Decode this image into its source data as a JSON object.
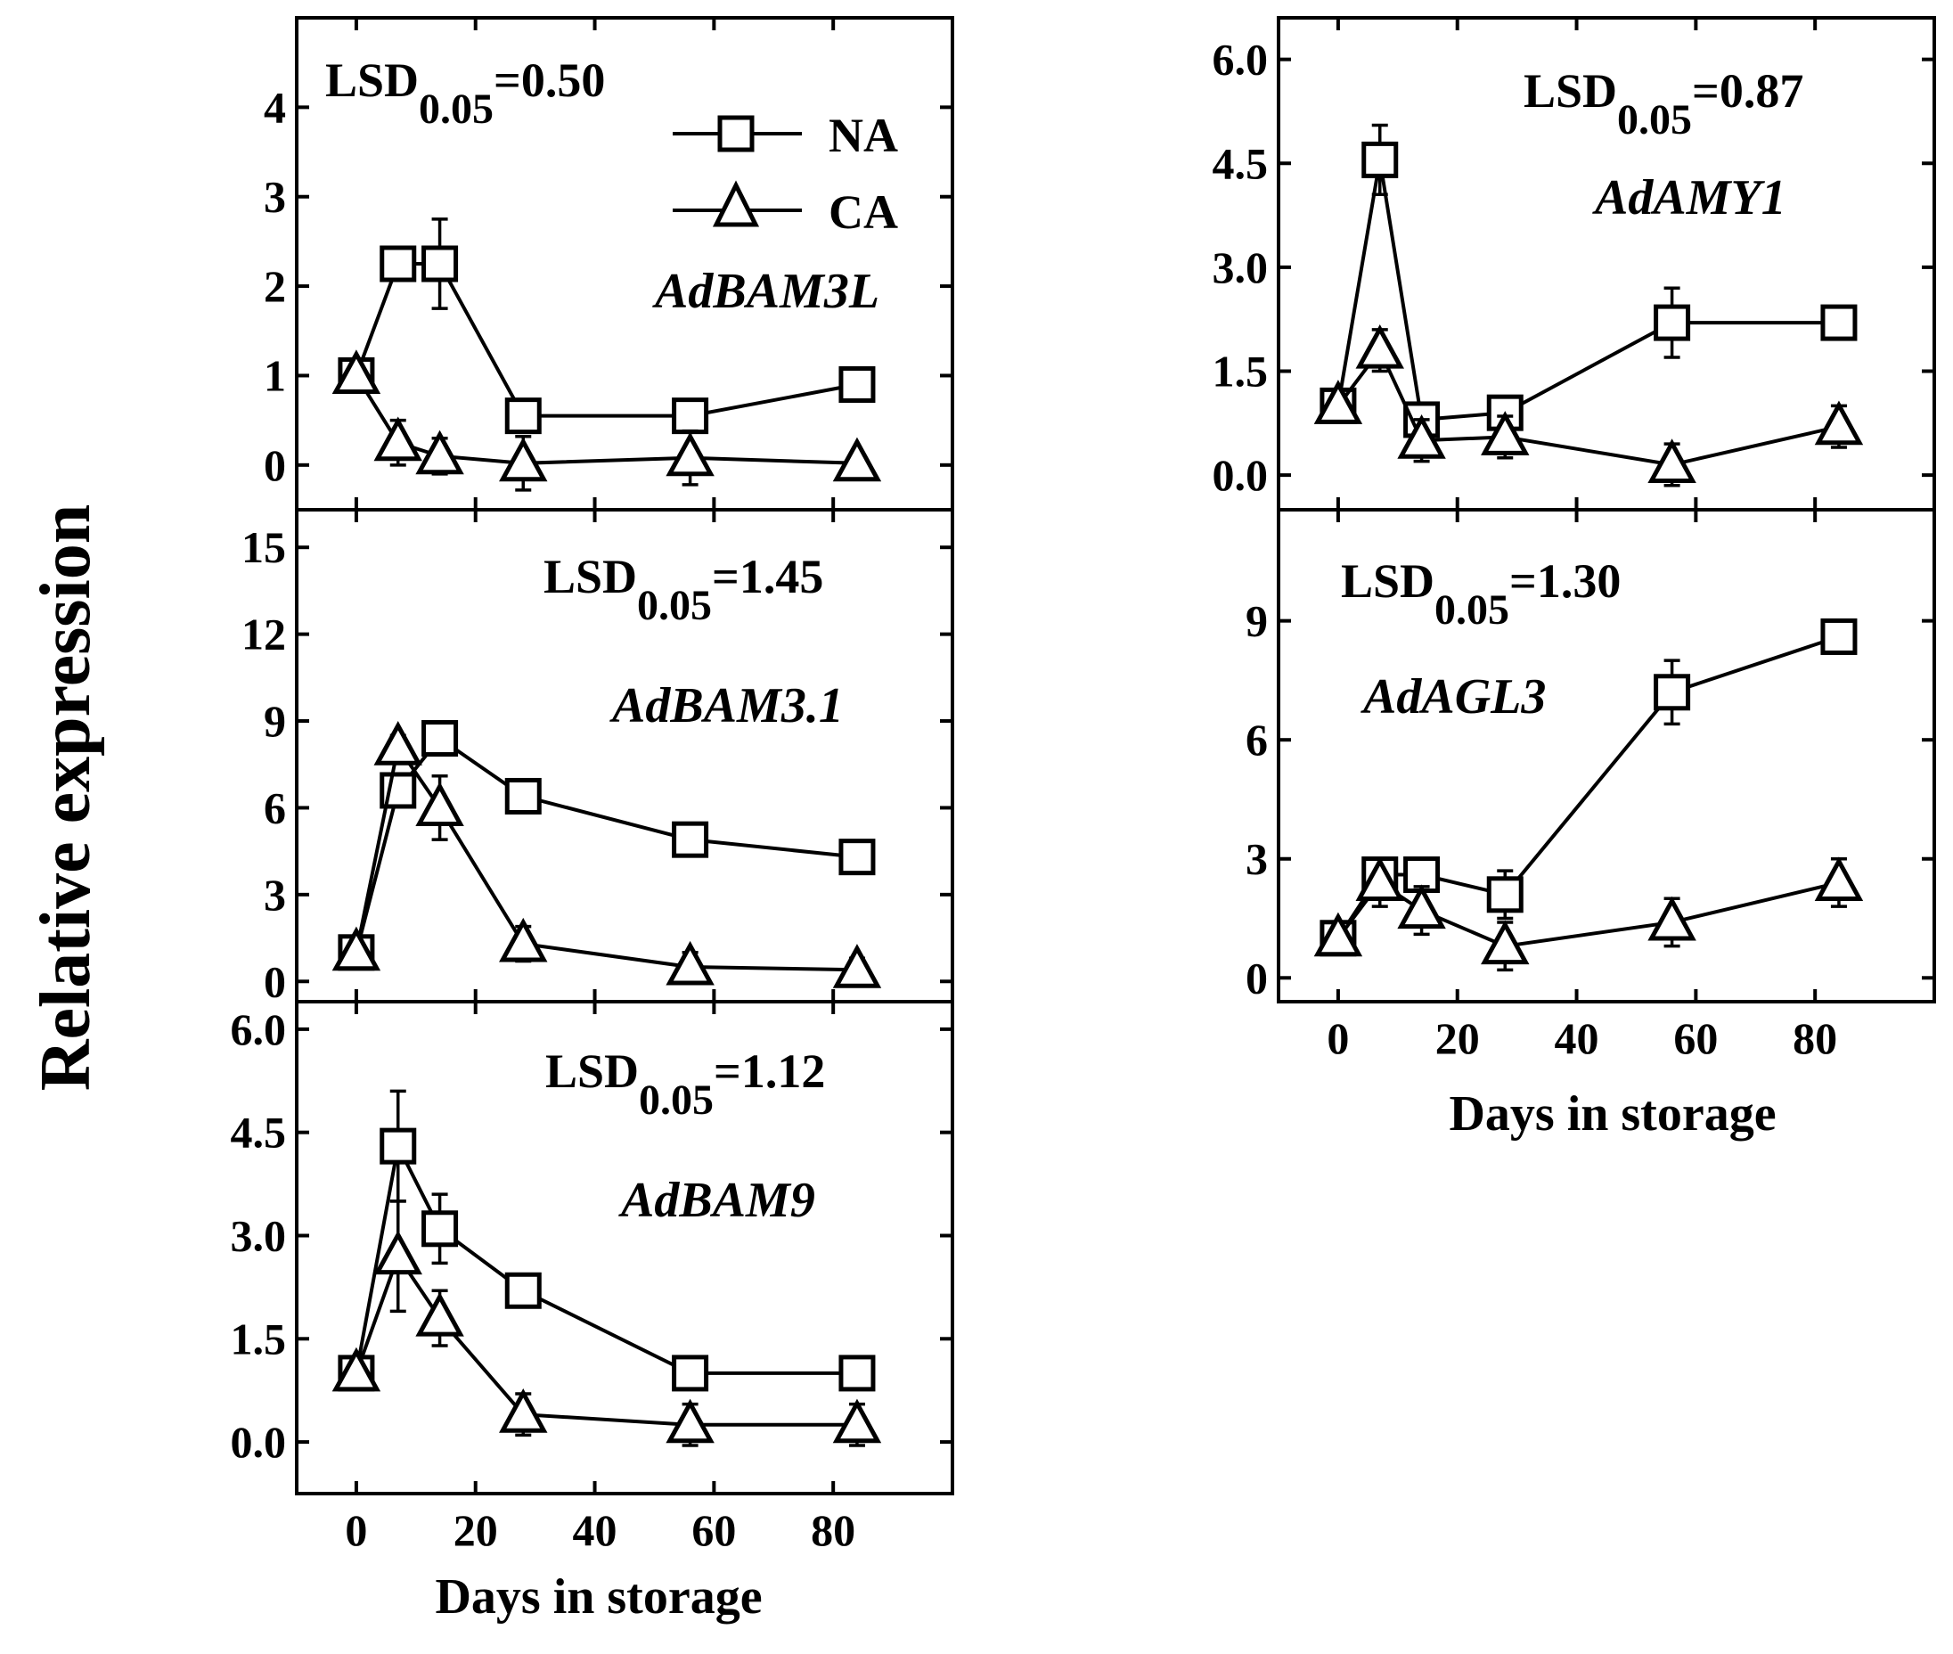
{
  "figure": {
    "ylabel": "Relative expression",
    "xlabel": "Days in storage",
    "legend": [
      {
        "name": "NA",
        "marker": "square"
      },
      {
        "name": "CA",
        "marker": "triangle"
      }
    ]
  },
  "chart_data": [
    {
      "type": "line",
      "gene": "AdBAM3L",
      "lsd_prefix": "LSD",
      "lsd_sub": "0.05",
      "lsd_value": "=0.50",
      "ylim": [
        -0.5,
        5
      ],
      "yticks": [
        0,
        1,
        2,
        3,
        4
      ],
      "ytick_labels": [
        "0",
        "1",
        "2",
        "3",
        "4"
      ],
      "x": [
        0,
        7,
        14,
        28,
        56,
        84
      ],
      "series": [
        {
          "name": "NA",
          "marker": "square",
          "values": [
            1.0,
            2.25,
            2.25,
            0.55,
            0.55,
            0.9
          ],
          "err": [
            0.1,
            0.1,
            0.5,
            0.1,
            0.1,
            0.1
          ]
        },
        {
          "name": "CA",
          "marker": "triangle",
          "values": [
            1.0,
            0.25,
            0.1,
            0.02,
            0.08,
            0.02
          ],
          "err": [
            0.1,
            0.25,
            0.2,
            0.3,
            0.3,
            0.1
          ]
        }
      ]
    },
    {
      "type": "line",
      "gene": "AdBAM3.1",
      "lsd_prefix": "LSD",
      "lsd_sub": "0.05",
      "lsd_value": "=1.45",
      "ylim": [
        -0.7,
        16.3
      ],
      "yticks": [
        0,
        3,
        6,
        9,
        12,
        15
      ],
      "ytick_labels": [
        "0",
        "3",
        "6",
        "9",
        "12",
        "15"
      ],
      "x": [
        0,
        7,
        14,
        28,
        56,
        84
      ],
      "series": [
        {
          "name": "NA",
          "marker": "square",
          "values": [
            1.0,
            6.6,
            8.4,
            6.4,
            4.9,
            4.3
          ],
          "err": [
            0.2,
            0.5,
            0.4,
            0.2,
            0.3,
            0.3
          ]
        },
        {
          "name": "CA",
          "marker": "triangle",
          "values": [
            1.0,
            8.1,
            6.0,
            1.3,
            0.5,
            0.4
          ],
          "err": [
            0.2,
            0.4,
            1.1,
            0.6,
            0.5,
            0.4
          ]
        }
      ]
    },
    {
      "type": "line",
      "gene": "AdBAM9",
      "lsd_prefix": "LSD",
      "lsd_sub": "0.05",
      "lsd_value": "=1.12",
      "ylim": [
        -0.75,
        6.4
      ],
      "yticks": [
        0,
        1.5,
        3,
        4.5,
        6
      ],
      "ytick_labels": [
        "0.0",
        "1.5",
        "3.0",
        "4.5",
        "6.0"
      ],
      "x": [
        0,
        7,
        14,
        28,
        56,
        84
      ],
      "series": [
        {
          "name": "NA",
          "marker": "square",
          "values": [
            1.0,
            4.3,
            3.1,
            2.2,
            1.0,
            1.0
          ],
          "err": [
            0.1,
            0.8,
            0.5,
            0.1,
            0.1,
            0.1
          ]
        },
        {
          "name": "CA",
          "marker": "triangle",
          "values": [
            1.0,
            2.7,
            1.8,
            0.4,
            0.25,
            0.25
          ],
          "err": [
            0.1,
            0.8,
            0.4,
            0.3,
            0.3,
            0.3
          ]
        }
      ]
    },
    {
      "type": "line",
      "gene": "AdAMY1",
      "lsd_prefix": "LSD",
      "lsd_sub": "0.05",
      "lsd_value": "=0.87",
      "ylim": [
        -0.5,
        6.6
      ],
      "yticks": [
        0,
        1.5,
        3,
        4.5,
        6
      ],
      "ytick_labels": [
        "0.0",
        "1.5",
        "3.0",
        "4.5",
        "6.0"
      ],
      "x": [
        0,
        7,
        14,
        28,
        56,
        84
      ],
      "series": [
        {
          "name": "NA",
          "marker": "square",
          "values": [
            1.0,
            4.55,
            0.8,
            0.9,
            2.2,
            2.2
          ],
          "err": [
            0.1,
            0.5,
            0.1,
            0.1,
            0.5,
            0.1
          ]
        },
        {
          "name": "CA",
          "marker": "triangle",
          "values": [
            1.0,
            1.8,
            0.5,
            0.55,
            0.15,
            0.7
          ],
          "err": [
            0.1,
            0.3,
            0.3,
            0.3,
            0.3,
            0.3
          ]
        }
      ]
    },
    {
      "type": "line",
      "gene": "AdAGL3",
      "lsd_prefix": "LSD",
      "lsd_sub": "0.05",
      "lsd_value": "=1.30",
      "ylim": [
        -0.6,
        11.8
      ],
      "yticks": [
        0,
        3,
        6,
        9
      ],
      "ytick_labels": [
        "0",
        "3",
        "6",
        "9"
      ],
      "x": [
        0,
        7,
        14,
        28,
        56,
        84
      ],
      "series": [
        {
          "name": "NA",
          "marker": "square",
          "values": [
            1.0,
            2.6,
            2.6,
            2.1,
            7.2,
            8.6
          ],
          "err": [
            0.1,
            0.2,
            0.2,
            0.6,
            0.8,
            0.1
          ]
        },
        {
          "name": "CA",
          "marker": "triangle",
          "values": [
            1.0,
            2.4,
            1.7,
            0.8,
            1.4,
            2.4
          ],
          "err": [
            0.1,
            0.6,
            0.6,
            0.6,
            0.6,
            0.6
          ]
        }
      ]
    }
  ],
  "x_axis": {
    "xlim": [
      -10,
      100
    ],
    "xticks": [
      0,
      20,
      40,
      60,
      80
    ],
    "xtick_labels": [
      "0",
      "20",
      "40",
      "60",
      "80"
    ]
  }
}
